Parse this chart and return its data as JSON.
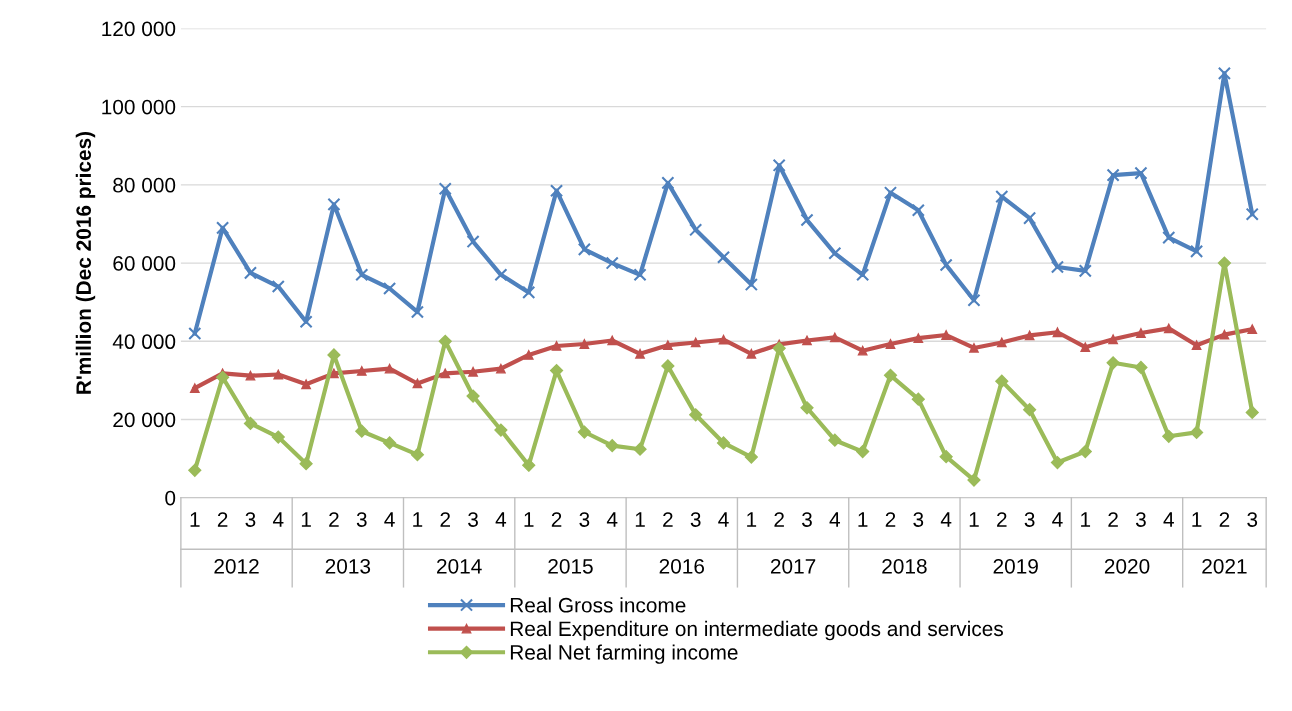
{
  "chart_data": {
    "type": "line",
    "ylabel": "R'million (Dec 2016 prices)",
    "categories": [
      "1",
      "2",
      "3",
      "4",
      "1",
      "2",
      "3",
      "4",
      "1",
      "2",
      "3",
      "4",
      "1",
      "2",
      "3",
      "4",
      "1",
      "2",
      "3",
      "4",
      "1",
      "2",
      "3",
      "4",
      "1",
      "2",
      "3",
      "4",
      "1",
      "2",
      "3",
      "4",
      "1",
      "2",
      "3",
      "4",
      "1",
      "2",
      "3"
    ],
    "annotations": [
      "2012",
      "2013",
      "2014",
      "2015",
      "2016",
      "2017",
      "2018",
      "2019",
      "2020",
      "2021"
    ],
    "series": [
      {
        "name": "Real Gross income",
        "color": "#4f81bd",
        "marker": "cross",
        "values": [
          42000,
          69000,
          57500,
          54000,
          45000,
          75000,
          57000,
          53500,
          47500,
          79000,
          65500,
          57000,
          52500,
          78500,
          63500,
          60000,
          57000,
          80500,
          68500,
          61500,
          54500,
          85000,
          71000,
          62500,
          57000,
          78000,
          73500,
          59500,
          50500,
          77000,
          71500,
          59000,
          58000,
          82500,
          83000,
          66500,
          63000,
          108500,
          72500
        ]
      },
      {
        "name": "Real Expenditure on intermediate goods and services",
        "color": "#c0504d",
        "marker": "triangle",
        "values": [
          28000,
          31800,
          31200,
          31500,
          29000,
          31800,
          32400,
          33000,
          29200,
          31800,
          32200,
          33000,
          36500,
          38800,
          39300,
          40200,
          36800,
          39000,
          39700,
          40400,
          36800,
          39200,
          40200,
          41000,
          37600,
          39300,
          40800,
          41600,
          38300,
          39700,
          41500,
          42300,
          38500,
          40500,
          42100,
          43300,
          39000,
          41700,
          43100
        ]
      },
      {
        "name": "Real Net farming income",
        "color": "#9bbb59",
        "marker": "diamond",
        "values": [
          7000,
          30800,
          19000,
          15500,
          8700,
          36500,
          17000,
          14000,
          11000,
          40000,
          26000,
          17300,
          8300,
          32500,
          16800,
          13300,
          12400,
          33700,
          21200,
          14000,
          10400,
          38200,
          23000,
          14700,
          11800,
          31300,
          25200,
          10500,
          4500,
          29800,
          22500,
          9000,
          11800,
          34500,
          33300,
          15700,
          16700,
          60000,
          21800
        ]
      }
    ],
    "ylim": [
      0,
      120000
    ],
    "yticks": [
      0,
      {
        "value": 20000,
        "label": "20 000"
      },
      {
        "value": 40000,
        "label": "40 000"
      },
      {
        "value": 60000,
        "label": "60 000"
      },
      {
        "value": 80000,
        "label": "80 000"
      },
      {
        "value": 100000,
        "label": "100 000"
      },
      {
        "value": 120000,
        "label": "120 000"
      }
    ],
    "grid": "y",
    "legend": "bottom",
    "line_style": "solid"
  }
}
